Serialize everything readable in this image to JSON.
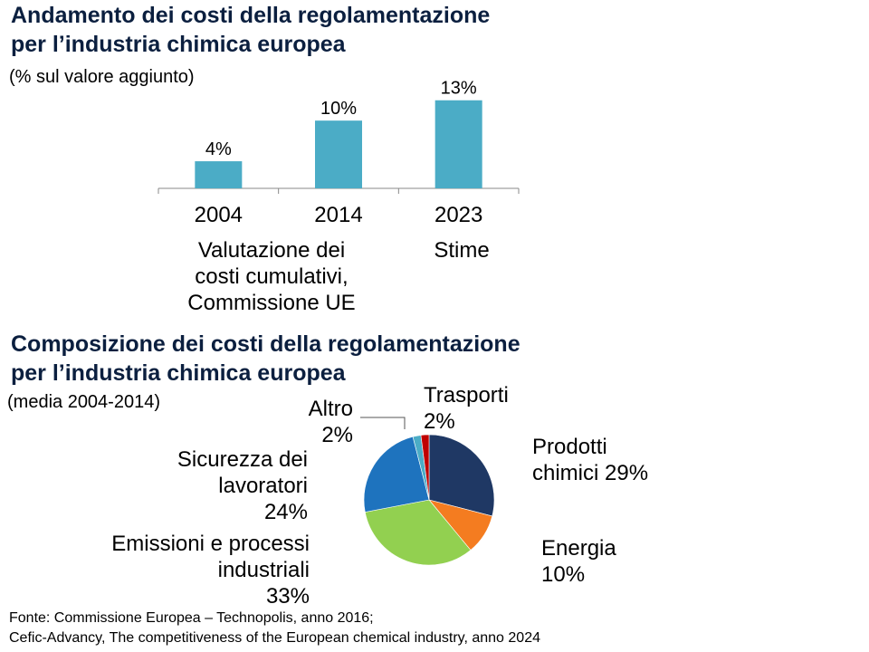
{
  "chart_data": [
    {
      "type": "bar",
      "title": "Andamento dei costi della regolamentazione\nper l’industria chimica europea",
      "subtitle": "(% sul valore aggiunto)",
      "categories": [
        "2004",
        "2014",
        "2023"
      ],
      "values": [
        4,
        10,
        13
      ],
      "value_labels": [
        "4%",
        "10%",
        "13%"
      ],
      "unit": "%",
      "ylim": [
        0,
        13.5
      ],
      "grid": false,
      "color": "#4bacc6",
      "notes": [
        {
          "category_span": [
            "2004",
            "2014"
          ],
          "text": "Valutazione dei\ncosti cumulativi,\nCommissione UE"
        },
        {
          "category_span": [
            "2023"
          ],
          "text": "Stime"
        }
      ]
    },
    {
      "type": "pie",
      "title": "Composizione dei costi della regolamentazione\nper l’industria chimica europea",
      "subtitle": "(media 2004-2014)",
      "slices": [
        {
          "name": "Prodotti chimici",
          "label": "Prodotti\nchimici 29%",
          "value": 29,
          "color": "#1f3864"
        },
        {
          "name": "Energia",
          "label": "Energia\n10%",
          "value": 10,
          "color": "#f47c20"
        },
        {
          "name": "Emissioni e processi industriali",
          "label": "Emissioni e processi\nindustriali\n33%",
          "value": 33,
          "color": "#92d050"
        },
        {
          "name": "Sicurezza dei lavoratori",
          "label": "Sicurezza dei\nlavoratori\n24%",
          "value": 24,
          "color": "#1e73be"
        },
        {
          "name": "Altro",
          "label": "Altro\n2%",
          "value": 2,
          "color": "#4bacc6"
        },
        {
          "name": "Trasporti",
          "label": "Trasporti\n2%",
          "value": 2,
          "color": "#c00000"
        }
      ]
    }
  ],
  "source": {
    "line1": "Fonte: Commissione Europea – Technopolis, anno 2016;",
    "line2": "Cefic-Advancy, The competitiveness of the European chemical industry, anno 2024"
  },
  "colors": {
    "title": "#0b1f3f",
    "axis": "#888888"
  }
}
